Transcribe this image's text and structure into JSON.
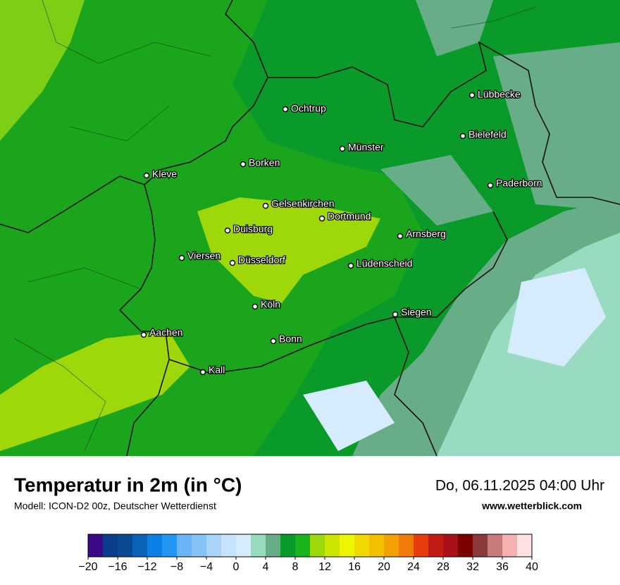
{
  "header": {
    "title": "Temperatur in 2m (in °C)",
    "subtitle": "Modell: ICON-D2 00z, Deutscher Wetterdienst",
    "datetime": "Do, 06.11.2025 04:00 Uhr",
    "website": "www.wetterblick.com"
  },
  "cities": [
    "Ochtrup",
    "Lübbecke",
    "Bielefeld",
    "Münster",
    "Borken",
    "Kleve",
    "Paderborn",
    "Gelsenkirchen",
    "Dortmund",
    "Duisburg",
    "Arnsberg",
    "Viersen",
    "Düsseldorf",
    "Lüdenscheid",
    "Köln",
    "Siegen",
    "Aachen",
    "Bonn",
    "Kall"
  ],
  "colorbar": {
    "range": [
      -20,
      40
    ],
    "colors": [
      "#3a0a8a",
      "#0a3d8a",
      "#0b4a91",
      "#0b62b8",
      "#0a80e6",
      "#2196f3",
      "#6ab4f7",
      "#86c2f8",
      "#a8d4fa",
      "#c6e2fc",
      "#d6ecfd",
      "#99dbc0",
      "#66ad88",
      "#0a9a2a",
      "#1ab41c",
      "#9ed80a",
      "#cde600",
      "#eef500",
      "#f0d800",
      "#f2c000",
      "#f4a000",
      "#f07a0a",
      "#e83c0c",
      "#c21c16",
      "#a8101a",
      "#7a0000",
      "#8a3a3a",
      "#c87a7a",
      "#f5b0b0",
      "#fde0e0"
    ],
    "ticks": [
      {
        "value": -20,
        "label": "−20"
      },
      {
        "value": -16,
        "label": "−16"
      },
      {
        "value": -12,
        "label": "−12"
      },
      {
        "value": -8,
        "label": "−8"
      },
      {
        "value": -4,
        "label": "−4"
      },
      0,
      4,
      8,
      12,
      16,
      20,
      24,
      28,
      32,
      36,
      40
    ]
  }
}
